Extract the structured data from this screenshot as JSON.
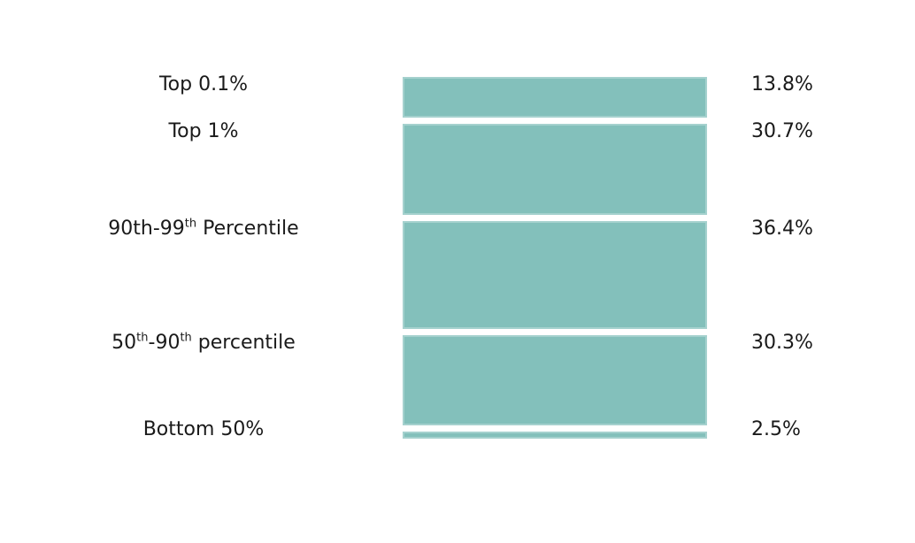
{
  "chart_data": {
    "type": "bar",
    "orientation": "horizontal-rows-height-encoded",
    "title": "",
    "xlabel": "",
    "ylabel": "",
    "legend": "none",
    "grid": false,
    "unit": "%",
    "background_color": "#ffffff",
    "bar_color": "#83c0bb",
    "text_color": "#1a1a1a",
    "categories": [
      "Top 0.1%",
      "Top 1%",
      "90th-99th Percentile",
      "50th-90th percentile",
      "Bottom 50%"
    ],
    "values": [
      13.8,
      30.7,
      36.4,
      30.3,
      2.5
    ],
    "value_labels": [
      "13.8%",
      "30.7%",
      "36.4%",
      "30.3%",
      "2.5%"
    ],
    "rows": [
      {
        "label_segments": [
          {
            "text": "Top 0.1%"
          }
        ],
        "value": 13.8,
        "value_label": "13.8%"
      },
      {
        "label_segments": [
          {
            "text": "Top 1%"
          }
        ],
        "value": 30.7,
        "value_label": "30.7%"
      },
      {
        "label_segments": [
          {
            "text": "90th-99"
          },
          {
            "text": "th",
            "sup": true
          },
          {
            "text": " Percentile"
          }
        ],
        "value": 36.4,
        "value_label": "36.4%"
      },
      {
        "label_segments": [
          {
            "text": "50"
          },
          {
            "text": "th",
            "sup": true
          },
          {
            "text": "-90"
          },
          {
            "text": "th",
            "sup": true
          },
          {
            "text": " percentile"
          }
        ],
        "value": 30.3,
        "value_label": "30.3%"
      },
      {
        "label_segments": [
          {
            "text": "Bottom 50%"
          }
        ],
        "value": 2.5,
        "value_label": "2.5%"
      }
    ]
  }
}
